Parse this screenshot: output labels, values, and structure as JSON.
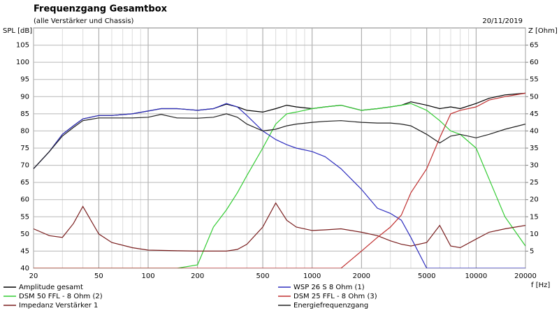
{
  "chart_data": {
    "type": "line",
    "title": "Frequenzgang Gesamtbox",
    "subtitle": "(alle Verstärker und Chassis)",
    "date": "20/11/2019",
    "ylabel": "SPL [dB]",
    "y2label": "Z [Ohm]",
    "xlabel": "f [Hz]",
    "xscale": "log",
    "grid": true,
    "legend": "bottom",
    "xlim": [
      20,
      20000
    ],
    "xticks": [
      20,
      50,
      100,
      200,
      500,
      1000,
      2000,
      5000,
      10000,
      20000
    ],
    "xgrid_minor": [
      30,
      40,
      60,
      70,
      80,
      90,
      300,
      400,
      600,
      700,
      800,
      900,
      3000,
      4000,
      6000,
      7000,
      8000,
      9000
    ],
    "ylim": [
      40,
      110
    ],
    "yticks": [
      40,
      45,
      50,
      55,
      60,
      65,
      70,
      75,
      80,
      85,
      90,
      95,
      100,
      105
    ],
    "y2lim": [
      0,
      70
    ],
    "y2ticks": [
      5,
      10,
      15,
      20,
      25,
      30,
      35,
      40,
      45,
      50,
      55,
      60,
      65
    ],
    "x": [
      20,
      25,
      30,
      35,
      40,
      50,
      60,
      80,
      100,
      120,
      150,
      200,
      250,
      300,
      350,
      400,
      500,
      600,
      700,
      800,
      1000,
      1200,
      1500,
      2000,
      2500,
      3000,
      3500,
      4000,
      5000,
      6000,
      7000,
      8000,
      10000,
      12000,
      15000,
      20000
    ],
    "series": [
      {
        "name": "Amplitude gesamt",
        "color": "#000000",
        "values": [
          69,
          74,
          79,
          81.5,
          83.5,
          84.5,
          84.5,
          85,
          85.8,
          86.5,
          86.5,
          86,
          86.5,
          87.8,
          87,
          86,
          85.5,
          86.5,
          87.5,
          87,
          86.5,
          87,
          87.5,
          86,
          86.5,
          87,
          87.5,
          88.5,
          87.5,
          86.5,
          87,
          86.5,
          88,
          89.5,
          90.5,
          91
        ]
      },
      {
        "name": "DSM 50 FFL - 8 Ohm (2)",
        "color": "#33cc33",
        "values": [
          40,
          40,
          40,
          40,
          40,
          40,
          40,
          40,
          40,
          40,
          40,
          41,
          52,
          57,
          62,
          67,
          75,
          82,
          85,
          85.5,
          86.5,
          87,
          87.5,
          86,
          86.5,
          87,
          87.5,
          88,
          86,
          83,
          80,
          79,
          75,
          66,
          55,
          46.5
        ]
      },
      {
        "name": "Impedanz Verstärker 1",
        "color": "#7a1f1f",
        "axis": "y2",
        "values": [
          11.5,
          9.5,
          9,
          13,
          18,
          10,
          7.5,
          6,
          5.3,
          5.2,
          5.1,
          5,
          5,
          5,
          5.5,
          7,
          12,
          19,
          14,
          12,
          11,
          11.2,
          11.5,
          10.5,
          9.5,
          8,
          7,
          6.5,
          7.5,
          12.5,
          6.5,
          6,
          8.5,
          10.5,
          11.5,
          12.5
        ]
      },
      {
        "name": "WSP 26 S 8 Ohm (1)",
        "color": "#2f2fbf",
        "values": [
          69,
          74,
          79,
          81.5,
          83.5,
          84.5,
          84.5,
          85,
          85.8,
          86.5,
          86.5,
          86,
          86.5,
          88,
          87,
          84.5,
          80,
          77.5,
          76,
          75,
          74,
          72.5,
          69,
          63,
          57.5,
          56,
          54,
          49,
          40,
          40,
          40,
          40,
          40,
          40,
          40,
          40
        ]
      },
      {
        "name": "DSM 25 FFL - 8 Ohm (3)",
        "color": "#c03030",
        "values": [
          40,
          40,
          40,
          40,
          40,
          40,
          40,
          40,
          40,
          40,
          40,
          40,
          40,
          40,
          40,
          40,
          40,
          40,
          40,
          40,
          40,
          40,
          40,
          45,
          49,
          52,
          55.5,
          62,
          69,
          78,
          85,
          86,
          87,
          89,
          90,
          91
        ]
      },
      {
        "name": "Energiefrequenzgang",
        "color": "#202020",
        "values": [
          69,
          74,
          78.5,
          81,
          83,
          83.8,
          83.8,
          83.8,
          84,
          84.8,
          83.8,
          83.7,
          84,
          85,
          84,
          82,
          80,
          80.5,
          81.5,
          82,
          82.5,
          82.8,
          83,
          82.5,
          82.3,
          82.3,
          82,
          81.5,
          79,
          76.5,
          78.5,
          79,
          78,
          79,
          80.5,
          82
        ]
      }
    ]
  }
}
